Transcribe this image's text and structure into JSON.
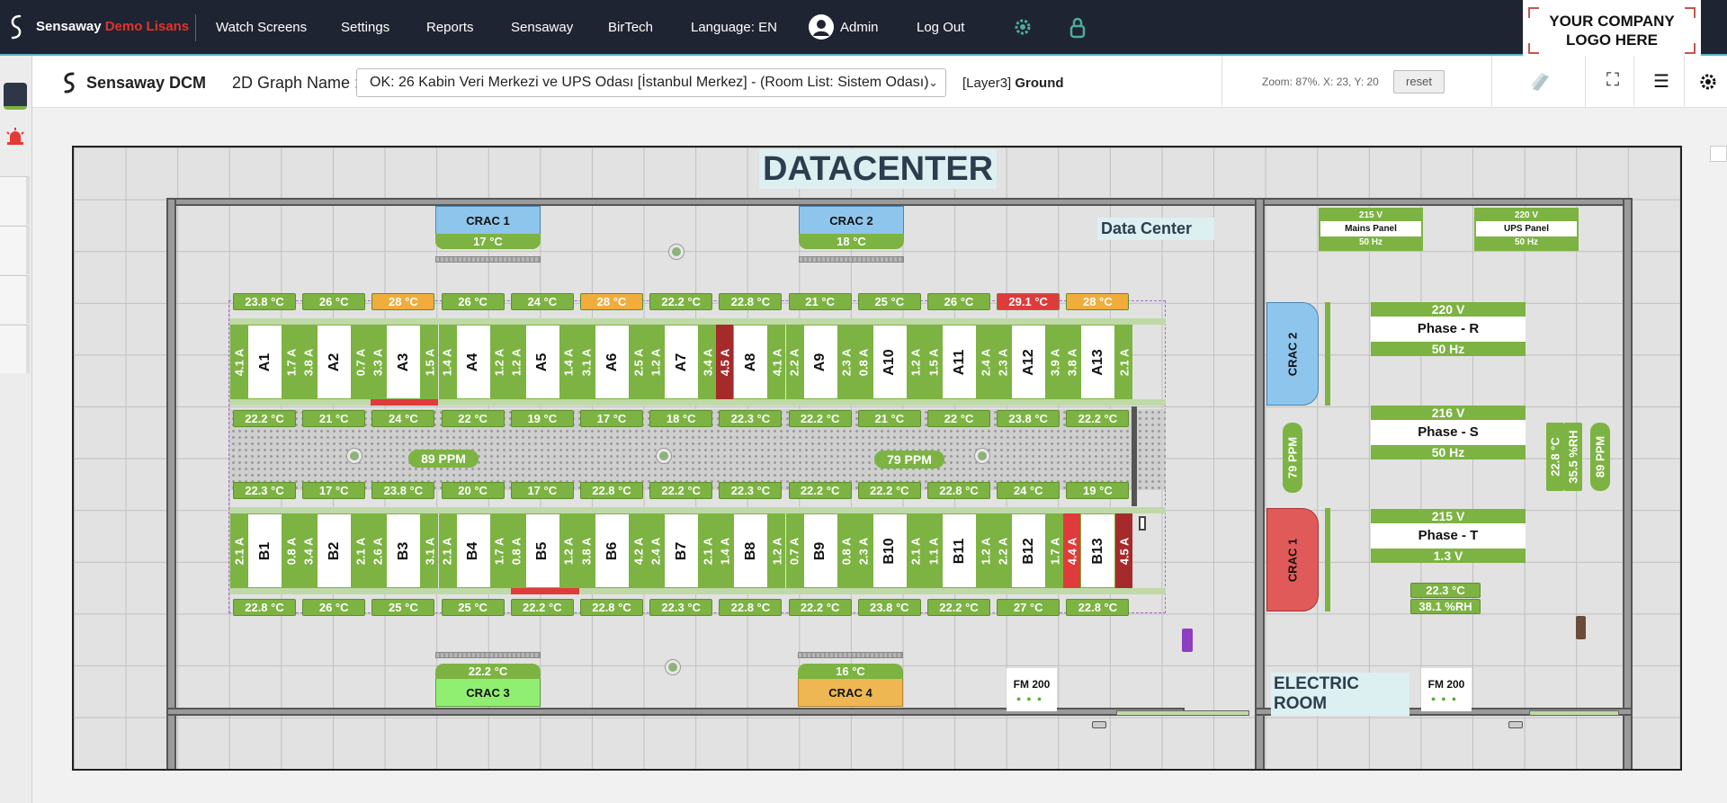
{
  "app": {
    "brand": "Sensaway",
    "brand_suffix": "Demo Lisans"
  },
  "nav": {
    "watch": "Watch Screens",
    "settings": "Settings",
    "reports": "Reports",
    "sensaway": "Sensaway",
    "birtech": "BirTech",
    "language": "Language: EN",
    "user": "Admin",
    "logout": "Log Out"
  },
  "company_logo": "YOUR COMPANY\nLOGO HERE",
  "toolbar": {
    "title": "Sensaway DCM",
    "graph_label": "2D Graph Name :",
    "graph_value": "OK: 26 Kabin Veri Merkezi ve UPS Odası [İstanbul Merkez] - (Room List: Sistem Odası)",
    "layer_prefix": "[Layer3]",
    "layer_name": "Ground",
    "zoom": "Zoom: 87%. X: 23, Y: 20",
    "reset": "reset"
  },
  "colors": {
    "green": "#7cb342",
    "orange": "#f0ad3c",
    "red": "#e03b3b",
    "darkred": "#a52a2a",
    "crac_blue": "#8ec5ec",
    "crac_red": "#e05a5a",
    "crac_lightgreen": "#90ee70",
    "crac_orange": "#efb751",
    "nav_bg": "#1f2433"
  },
  "map": {
    "title": "DATACENTER",
    "dc_label": "Data Center",
    "electric_label": "ELECTRIC ROOM",
    "crac_top": [
      {
        "name": "CRAC 1",
        "temp": "17 °C",
        "color": "blue"
      },
      {
        "name": "CRAC 2",
        "temp": "18 °C",
        "color": "blue"
      }
    ],
    "crac_bottom": [
      {
        "name": "CRAC 3",
        "temp": "22.2 °C",
        "color": "lightgreen"
      },
      {
        "name": "CRAC 4",
        "temp": "16 °C",
        "color": "orange"
      }
    ],
    "crac_side": [
      {
        "name": "CRAC 2",
        "color": "blue"
      },
      {
        "name": "CRAC 1",
        "color": "red"
      }
    ],
    "row_a": {
      "top_temps": [
        {
          "v": "23.8 °C",
          "c": "green"
        },
        {
          "v": "26 °C",
          "c": "green"
        },
        {
          "v": "28 °C",
          "c": "orange"
        },
        {
          "v": "26 °C",
          "c": "green"
        },
        {
          "v": "24 °C",
          "c": "green"
        },
        {
          "v": "28 °C",
          "c": "orange"
        },
        {
          "v": "22.2 °C",
          "c": "green"
        },
        {
          "v": "22.8 °C",
          "c": "green"
        },
        {
          "v": "21 °C",
          "c": "green"
        },
        {
          "v": "25 °C",
          "c": "green"
        },
        {
          "v": "26 °C",
          "c": "green"
        },
        {
          "v": "29.1 °C",
          "c": "red"
        },
        {
          "v": "28 °C",
          "c": "orange"
        }
      ],
      "racks": [
        {
          "name": "A1",
          "l": "4.1 A",
          "r": "1.7 A",
          "lc": "green",
          "rc": "green"
        },
        {
          "name": "A2",
          "l": "3.8 A",
          "r": "0.7 A",
          "lc": "green",
          "rc": "green"
        },
        {
          "name": "A3",
          "l": "3.3 A",
          "r": "1.5 A",
          "lc": "green",
          "rc": "green"
        },
        {
          "name": "A4",
          "l": "1.4 A",
          "r": "1.2 A",
          "lc": "green",
          "rc": "green"
        },
        {
          "name": "A5",
          "l": "1.2 A",
          "r": "1.4 A",
          "lc": "green",
          "rc": "green"
        },
        {
          "name": "A6",
          "l": "3.1 A",
          "r": "2.5 A",
          "lc": "green",
          "rc": "green"
        },
        {
          "name": "A7",
          "l": "1.2 A",
          "r": "3.4 A",
          "lc": "green",
          "rc": "green"
        },
        {
          "name": "A8",
          "l": "4.5 A",
          "r": "4.1 A",
          "lc": "darkred",
          "rc": "green"
        },
        {
          "name": "A9",
          "l": "2.2 A",
          "r": "2.3 A",
          "lc": "green",
          "rc": "green"
        },
        {
          "name": "A10",
          "l": "0.8 A",
          "r": "1.2 A",
          "lc": "green",
          "rc": "green"
        },
        {
          "name": "A11",
          "l": "1.5 A",
          "r": "2.4 A",
          "lc": "green",
          "rc": "green"
        },
        {
          "name": "A12",
          "l": "2.3 A",
          "r": "3.9 A",
          "lc": "green",
          "rc": "green"
        },
        {
          "name": "A13",
          "l": "3.8 A",
          "r": "2.1 A",
          "lc": "green",
          "rc": "green"
        }
      ],
      "bottom_temps": [
        {
          "v": "22.2 °C",
          "c": "green"
        },
        {
          "v": "21 °C",
          "c": "green"
        },
        {
          "v": "24 °C",
          "c": "green"
        },
        {
          "v": "22 °C",
          "c": "green"
        },
        {
          "v": "19 °C",
          "c": "green"
        },
        {
          "v": "17 °C",
          "c": "green"
        },
        {
          "v": "18 °C",
          "c": "green"
        },
        {
          "v": "22.3 °C",
          "c": "green"
        },
        {
          "v": "22.2 °C",
          "c": "green"
        },
        {
          "v": "21 °C",
          "c": "green"
        },
        {
          "v": "22 °C",
          "c": "green"
        },
        {
          "v": "23.8 °C",
          "c": "green"
        },
        {
          "v": "22.2 °C",
          "c": "green"
        }
      ]
    },
    "row_b": {
      "top_temps": [
        {
          "v": "22.3 °C",
          "c": "green"
        },
        {
          "v": "17 °C",
          "c": "green"
        },
        {
          "v": "23.8 °C",
          "c": "green"
        },
        {
          "v": "20 °C",
          "c": "green"
        },
        {
          "v": "17 °C",
          "c": "green"
        },
        {
          "v": "22.8 °C",
          "c": "green"
        },
        {
          "v": "22.2 °C",
          "c": "green"
        },
        {
          "v": "22.3 °C",
          "c": "green"
        },
        {
          "v": "22.2 °C",
          "c": "green"
        },
        {
          "v": "22.2 °C",
          "c": "green"
        },
        {
          "v": "22.8 °C",
          "c": "green"
        },
        {
          "v": "24 °C",
          "c": "green"
        },
        {
          "v": "19 °C",
          "c": "green"
        }
      ],
      "racks": [
        {
          "name": "B1",
          "l": "2.1 A",
          "r": "0.8 A",
          "lc": "green",
          "rc": "green"
        },
        {
          "name": "B2",
          "l": "3.4 A",
          "r": "2.1 A",
          "lc": "green",
          "rc": "green"
        },
        {
          "name": "B3",
          "l": "2.6 A",
          "r": "3.1 A",
          "lc": "green",
          "rc": "green"
        },
        {
          "name": "B4",
          "l": "2.1 A",
          "r": "1.7 A",
          "lc": "green",
          "rc": "green"
        },
        {
          "name": "B5",
          "l": "0.8 A",
          "r": "1.2 A",
          "lc": "green",
          "rc": "green"
        },
        {
          "name": "B6",
          "l": "3.8 A",
          "r": "4.2 A",
          "lc": "green",
          "rc": "green"
        },
        {
          "name": "B7",
          "l": "2.4 A",
          "r": "2.1 A",
          "lc": "green",
          "rc": "green"
        },
        {
          "name": "B8",
          "l": "1.4 A",
          "r": "1.2 A",
          "lc": "green",
          "rc": "green"
        },
        {
          "name": "B9",
          "l": "0.7 A",
          "r": "0.8 A",
          "lc": "green",
          "rc": "green"
        },
        {
          "name": "B10",
          "l": "2.3 A",
          "r": "2.1 A",
          "lc": "green",
          "rc": "green"
        },
        {
          "name": "B11",
          "l": "1.1 A",
          "r": "1.2 A",
          "lc": "green",
          "rc": "green"
        },
        {
          "name": "B12",
          "l": "2.2 A",
          "r": "1.7 A",
          "lc": "green",
          "rc": "green"
        },
        {
          "name": "B13",
          "l": "4.4 A",
          "r": "4.5 A",
          "lc": "red",
          "rc": "darkred"
        }
      ],
      "bottom_temps": [
        {
          "v": "22.8 °C",
          "c": "green"
        },
        {
          "v": "26 °C",
          "c": "green"
        },
        {
          "v": "25 °C",
          "c": "green"
        },
        {
          "v": "25 °C",
          "c": "green"
        },
        {
          "v": "22.2 °C",
          "c": "green"
        },
        {
          "v": "22.8 °C",
          "c": "green"
        },
        {
          "v": "22.3 °C",
          "c": "green"
        },
        {
          "v": "22.8 °C",
          "c": "green"
        },
        {
          "v": "22.2 °C",
          "c": "green"
        },
        {
          "v": "23.8 °C",
          "c": "green"
        },
        {
          "v": "22.2 °C",
          "c": "green"
        },
        {
          "v": "27 °C",
          "c": "green"
        },
        {
          "v": "22.8 °C",
          "c": "green"
        }
      ]
    },
    "ppm": [
      "89 PPM",
      "79 PPM"
    ],
    "side_ppm": "79 PPM",
    "mains_panel": {
      "v": "215 V",
      "name": "Mains Panel",
      "hz": "50 Hz"
    },
    "ups_panel": {
      "v": "220 V",
      "name": "UPS Panel",
      "hz": "50 Hz"
    },
    "phases": [
      {
        "v": "220 V",
        "name": "Phase - R",
        "sub": "50 Hz"
      },
      {
        "v": "216 V",
        "name": "Phase - S",
        "sub": "50 Hz"
      },
      {
        "v": "215 V",
        "name": "Phase - T",
        "sub": "1.3 V"
      }
    ],
    "electric_env": {
      "temp": "22.3 °C",
      "rh": "38.1 %RH"
    },
    "side_sensor": [
      "22.8 °C",
      "35.5 %RH",
      "89 PPM"
    ],
    "fm": [
      "FM 200",
      "FM 200"
    ]
  }
}
